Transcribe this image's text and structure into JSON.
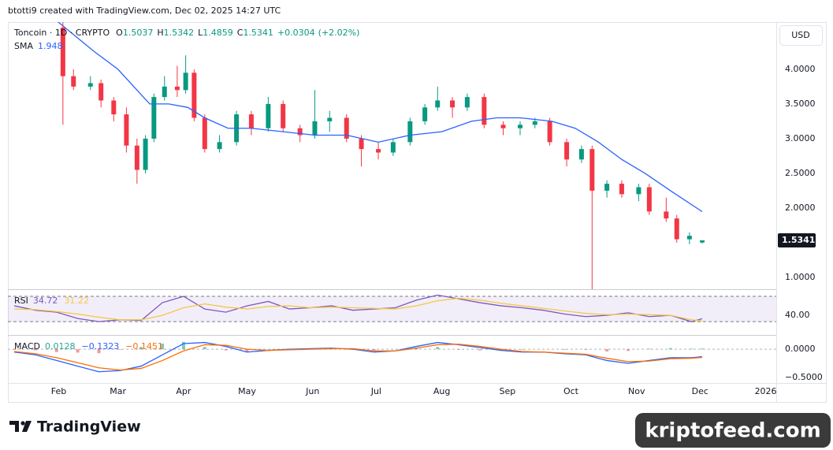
{
  "header": {
    "text": "btotti9 created with TradingView.com, Dec 02, 2025 14:27 UTC",
    "currency": "USD"
  },
  "footer": {
    "brand": "TradingView",
    "watermark": "kriptofeed.com"
  },
  "chart_data": [
    {
      "type": "candlestick",
      "legend": {
        "symbol": "Toncoin · 1D · CRYPTO",
        "open_label": "O",
        "high_label": "H",
        "low_label": "L",
        "close_label": "C",
        "change": {
          "value": 0.0304,
          "label": "+0.0304"
        },
        "change_pct": {
          "value": 2.02,
          "label": "(+2.02%)"
        }
      },
      "up_color": "#089981",
      "down_color": "#f23645",
      "xlim": [
        7,
        370
      ],
      "xticks": [
        {
          "value": 31,
          "label": "Feb"
        },
        {
          "value": 59,
          "label": "Mar"
        },
        {
          "value": 90,
          "label": "Apr"
        },
        {
          "value": 120,
          "label": "May"
        },
        {
          "value": 151,
          "label": "Jun"
        },
        {
          "value": 181,
          "label": "Jul"
        },
        {
          "value": 212,
          "label": "Aug"
        },
        {
          "value": 243,
          "label": "Sep"
        },
        {
          "value": 273,
          "label": "Oct"
        },
        {
          "value": 304,
          "label": "Nov"
        },
        {
          "value": 334,
          "label": "Dec"
        },
        {
          "value": 365,
          "label": "2026"
        }
      ],
      "ylim": [
        0.83,
        4.68
      ],
      "yticks": [
        {
          "value": 1,
          "label": "1.0000"
        },
        {
          "value": 2,
          "label": "2.0000"
        },
        {
          "value": 2.5,
          "label": "2.5000"
        },
        {
          "value": 3,
          "label": "3.0000"
        },
        {
          "value": 3.5,
          "label": "3.5000"
        },
        {
          "value": 4,
          "label": "4.0000"
        }
      ],
      "grid": false,
      "x": [
        33,
        38,
        46,
        51,
        57,
        63,
        68,
        72,
        76,
        81,
        87,
        91,
        95,
        100,
        107,
        115,
        122,
        130,
        137,
        145,
        152,
        159,
        167,
        174,
        182,
        189,
        197,
        204,
        210,
        217,
        224,
        232,
        241,
        249,
        256,
        263,
        271,
        278,
        283,
        290,
        297,
        305,
        310,
        318,
        323,
        329,
        335
      ],
      "open": [
        4.6,
        3.9,
        3.75,
        3.8,
        3.55,
        3.35,
        2.9,
        2.55,
        3.0,
        3.6,
        3.75,
        3.7,
        3.95,
        3.3,
        2.85,
        2.95,
        3.35,
        3.15,
        3.5,
        3.15,
        3.05,
        3.25,
        3.3,
        3.0,
        2.85,
        2.8,
        2.95,
        3.25,
        3.45,
        3.55,
        3.45,
        3.6,
        3.2,
        3.15,
        3.2,
        3.25,
        2.95,
        2.7,
        2.85,
        2.25,
        2.35,
        2.2,
        2.3,
        1.95,
        1.85,
        1.55,
        1.5037
      ],
      "high": [
        4.68,
        4.0,
        3.9,
        3.85,
        3.6,
        3.45,
        3.0,
        3.05,
        3.65,
        3.9,
        4.05,
        4.2,
        4.0,
        3.35,
        3.05,
        3.4,
        3.4,
        3.6,
        3.55,
        3.2,
        3.7,
        3.4,
        3.35,
        3.05,
        2.95,
        3.0,
        3.3,
        3.5,
        3.75,
        3.6,
        3.65,
        3.65,
        3.25,
        3.25,
        3.3,
        3.3,
        3.0,
        2.9,
        2.9,
        2.4,
        2.4,
        2.35,
        2.35,
        2.15,
        1.9,
        1.65,
        1.5342
      ],
      "low": [
        3.2,
        3.7,
        3.7,
        3.45,
        3.25,
        2.8,
        2.35,
        2.5,
        2.95,
        3.55,
        3.6,
        3.65,
        3.25,
        2.8,
        2.8,
        2.9,
        3.05,
        3.1,
        3.1,
        2.95,
        3.0,
        3.1,
        2.95,
        2.6,
        2.7,
        2.75,
        2.9,
        3.2,
        3.4,
        3.3,
        3.4,
        3.15,
        3.05,
        3.05,
        3.15,
        2.9,
        2.6,
        2.65,
        0.83,
        2.15,
        2.15,
        2.1,
        1.9,
        1.8,
        1.5,
        1.48,
        1.4859
      ],
      "close": [
        3.9,
        3.75,
        3.8,
        3.55,
        3.35,
        2.9,
        2.55,
        3.0,
        3.6,
        3.75,
        3.7,
        3.95,
        3.3,
        2.85,
        2.95,
        3.35,
        3.15,
        3.5,
        3.15,
        3.05,
        3.25,
        3.3,
        3.0,
        2.85,
        2.8,
        2.95,
        3.25,
        3.45,
        3.55,
        3.45,
        3.6,
        3.2,
        3.15,
        3.2,
        3.25,
        2.95,
        2.7,
        2.85,
        2.25,
        2.35,
        2.2,
        2.3,
        1.95,
        1.85,
        1.55,
        1.6,
        1.5341
      ],
      "series": [
        {
          "name": "SMA",
          "color": "#2962ff",
          "x": [
            30,
            38,
            48,
            59,
            68,
            74,
            83,
            92,
            100,
            111,
            122,
            137,
            152,
            167,
            182,
            197,
            212,
            226,
            238,
            249,
            264,
            275,
            286,
            297,
            308,
            320,
            335
          ],
          "values": [
            4.7,
            4.5,
            4.25,
            4.0,
            3.7,
            3.5,
            3.5,
            3.45,
            3.3,
            3.15,
            3.15,
            3.1,
            3.05,
            3.05,
            2.95,
            3.05,
            3.1,
            3.25,
            3.3,
            3.3,
            3.25,
            3.15,
            2.95,
            2.7,
            2.5,
            2.25,
            1.948
          ]
        }
      ]
    },
    {
      "type": "line",
      "ylim": [
        9,
        80
      ],
      "yticks": [
        {
          "value": 40,
          "label": "40.00"
        }
      ],
      "band": [
        30,
        70
      ],
      "band_color": "#7e57c2",
      "series": [
        {
          "name": "RSI",
          "color": "#7e57c2",
          "x": [
            10,
            20,
            30,
            40,
            50,
            60,
            70,
            80,
            90,
            100,
            110,
            120,
            130,
            140,
            150,
            160,
            170,
            180,
            190,
            200,
            210,
            220,
            230,
            240,
            250,
            260,
            270,
            280,
            290,
            300,
            310,
            320,
            330,
            335
          ],
          "values": [
            55,
            48,
            45,
            35,
            30,
            33,
            32,
            60,
            70,
            50,
            45,
            55,
            62,
            50,
            52,
            55,
            48,
            50,
            52,
            64,
            72,
            66,
            60,
            55,
            52,
            48,
            42,
            38,
            40,
            44,
            38,
            40,
            30,
            34.72
          ]
        },
        {
          "name": null,
          "color": "#f5c842",
          "x": [
            10,
            20,
            30,
            40,
            50,
            60,
            70,
            80,
            90,
            100,
            110,
            120,
            130,
            140,
            150,
            160,
            170,
            180,
            190,
            200,
            210,
            220,
            230,
            240,
            250,
            260,
            270,
            280,
            290,
            300,
            310,
            320,
            330,
            335
          ],
          "values": [
            50,
            49,
            46,
            42,
            37,
            33,
            33,
            40,
            52,
            58,
            53,
            50,
            54,
            55,
            52,
            53,
            52,
            51,
            50,
            55,
            63,
            67,
            64,
            59,
            55,
            51,
            47,
            43,
            41,
            42,
            41,
            40,
            33,
            31.22
          ]
        }
      ]
    },
    {
      "type": "line",
      "ylim": [
        -0.6,
        0.24
      ],
      "yticks": [
        {
          "value": 0,
          "label": "0.0000"
        },
        {
          "value": -0.5,
          "label": "−0.5000"
        }
      ],
      "series": [
        {
          "name": "MACD",
          "color": "#26a69a",
          "kind": "histogram",
          "x": [
            10,
            20,
            30,
            40,
            50,
            60,
            70,
            80,
            90,
            100,
            110,
            120,
            130,
            140,
            150,
            160,
            170,
            180,
            190,
            200,
            210,
            220,
            230,
            240,
            250,
            260,
            270,
            280,
            290,
            300,
            310,
            320,
            330,
            335
          ],
          "values": [
            -0.01,
            -0.02,
            -0.05,
            -0.06,
            -0.07,
            -0.01,
            0.04,
            0.1,
            0.13,
            0.04,
            -0.02,
            -0.05,
            0,
            0.01,
            0.01,
            0.01,
            -0.01,
            -0.02,
            0,
            0.03,
            0.04,
            -0.01,
            -0.02,
            -0.02,
            -0.01,
            0,
            -0.01,
            -0.01,
            -0.04,
            -0.03,
            0.01,
            0.02,
            0.01,
            0.0128
          ]
        },
        {
          "name": null,
          "color": "#2962ff",
          "legend_value": {
            "value": -0.1323,
            "label": "−0.1323"
          },
          "x": [
            10,
            20,
            30,
            40,
            50,
            60,
            70,
            80,
            90,
            100,
            110,
            120,
            130,
            140,
            150,
            160,
            170,
            180,
            190,
            200,
            210,
            220,
            230,
            240,
            250,
            260,
            270,
            280,
            290,
            300,
            310,
            320,
            330,
            335
          ],
          "values": [
            -0.05,
            -0.1,
            -0.2,
            -0.3,
            -0.4,
            -0.38,
            -0.3,
            -0.1,
            0.1,
            0.12,
            0.05,
            -0.05,
            -0.02,
            0,
            0.01,
            0.02,
            0,
            -0.05,
            -0.03,
            0.05,
            0.12,
            0.08,
            0.03,
            -0.02,
            -0.05,
            -0.05,
            -0.08,
            -0.1,
            -0.2,
            -0.25,
            -0.2,
            -0.15,
            -0.15,
            -0.1323
          ]
        },
        {
          "name": null,
          "color": "#ff6d00",
          "legend_value": {
            "value": -0.1451,
            "label": "−0.1451"
          },
          "x": [
            10,
            20,
            30,
            40,
            50,
            60,
            70,
            80,
            90,
            100,
            110,
            120,
            130,
            140,
            150,
            160,
            170,
            180,
            190,
            200,
            210,
            220,
            230,
            240,
            250,
            260,
            270,
            280,
            290,
            300,
            310,
            320,
            330,
            335
          ],
          "values": [
            -0.04,
            -0.08,
            -0.15,
            -0.24,
            -0.33,
            -0.37,
            -0.34,
            -0.2,
            -0.03,
            0.08,
            0.07,
            0,
            -0.02,
            -0.01,
            0,
            0.01,
            0.01,
            -0.03,
            -0.03,
            0.02,
            0.08,
            0.09,
            0.05,
            0,
            -0.04,
            -0.05,
            -0.07,
            -0.09,
            -0.16,
            -0.22,
            -0.21,
            -0.17,
            -0.16,
            -0.1451
          ]
        }
      ]
    }
  ]
}
